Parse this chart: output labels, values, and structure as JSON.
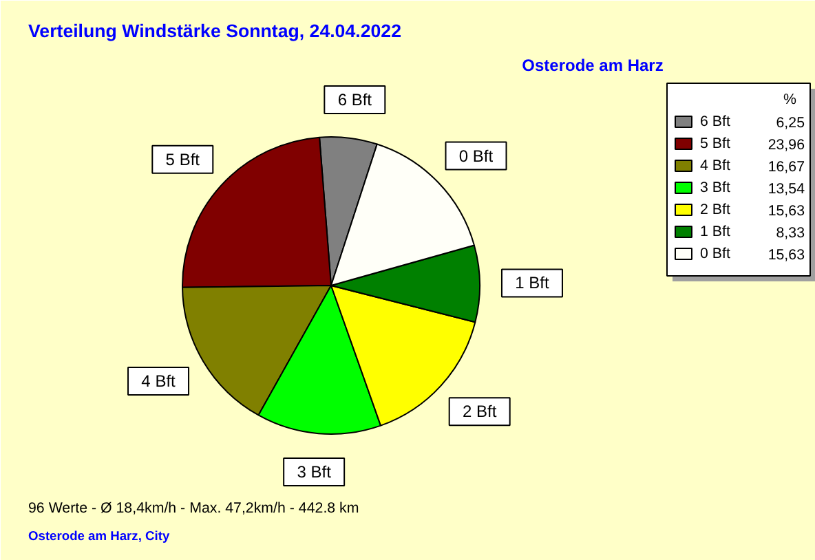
{
  "chart_data": {
    "type": "pie",
    "title": "Verteilung Windstärke  Sonntag, 24.04.2022",
    "subtitle": "Osterode am Harz",
    "categories": [
      "6 Bft",
      "5 Bft",
      "4 Bft",
      "3 Bft",
      "2 Bft",
      "1 Bft",
      "0 Bft"
    ],
    "values": [
      6.25,
      23.96,
      16.67,
      13.54,
      15.63,
      8.33,
      15.63
    ],
    "colors": [
      "#808080",
      "#800000",
      "#808000",
      "#00ff00",
      "#ffff00",
      "#008000",
      "#fffff8"
    ],
    "value_labels": [
      "6,25",
      "23,96",
      "16,67",
      "13,54",
      "15,63",
      "8,33",
      "15,63"
    ],
    "legend": "top right",
    "legend_title": "%",
    "annotations": [
      "96 Werte   -   Ø 18,4km/h  -  Max. 47,2km/h   -   442.8 km",
      "Osterode am Harz, City"
    ]
  }
}
